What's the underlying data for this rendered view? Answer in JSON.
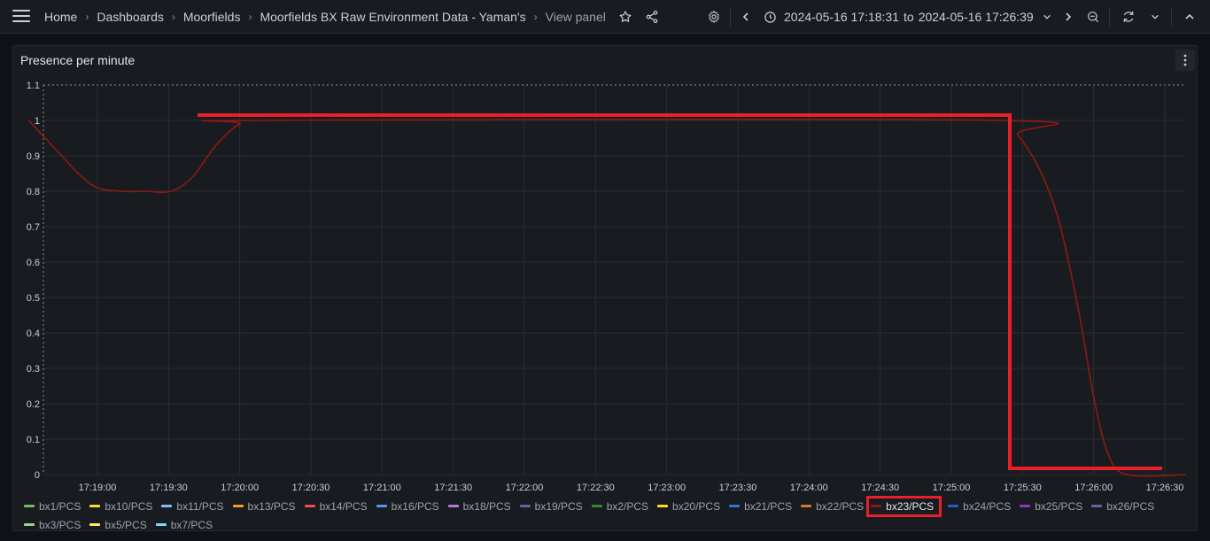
{
  "breadcrumb": [
    "Home",
    "Dashboards",
    "Moorfields",
    "Moorfields BX Raw Environment Data - Yaman's",
    "View panel"
  ],
  "time_range": {
    "from": "2024-05-16 17:18:31",
    "to_word": "to",
    "to": "2024-05-16 17:26:39"
  },
  "icons": {
    "menu": "hamburger-icon",
    "star": "star-icon",
    "share": "share-icon",
    "settings": "gear-icon",
    "prev": "chevron-left-icon",
    "clock": "clock-icon",
    "range_dropdown": "chevron-down-icon",
    "next": "chevron-right-icon",
    "zoom_out": "zoom-out-icon",
    "refresh": "refresh-icon",
    "refresh_dropdown": "chevron-down-icon",
    "collapse": "chevron-up-icon",
    "panel_menu": "kebab-menu-icon"
  },
  "panel": {
    "title": "Presence per minute"
  },
  "colors": {
    "bx23": "#8f1a12",
    "annotation": "#e8202a",
    "grid": "#2a2d33",
    "threshold": "#8e9099"
  },
  "chart_data": {
    "type": "line",
    "title": "Presence per minute",
    "ylim": [
      0,
      1.1
    ],
    "yticks": [
      "0",
      "0.1",
      "0.2",
      "0.3",
      "0.4",
      "0.5",
      "0.6",
      "0.7",
      "0.8",
      "0.9",
      "1",
      "1.1"
    ],
    "xticks": [
      "17:19:00",
      "17:19:30",
      "17:20:00",
      "17:20:30",
      "17:21:00",
      "17:21:30",
      "17:22:00",
      "17:22:30",
      "17:23:00",
      "17:23:30",
      "17:24:00",
      "17:24:30",
      "17:25:00",
      "17:25:30",
      "17:26:00",
      "17:26:30"
    ],
    "grid": true,
    "legend_position": "bottom",
    "series": [
      {
        "name": "bx23/PCS",
        "color": "#8f1a12",
        "points": [
          [
            "17:18:31",
            1.0
          ],
          [
            "17:18:45",
            0.9
          ],
          [
            "17:18:52",
            0.85
          ],
          [
            "17:19:00",
            0.81
          ],
          [
            "17:19:10",
            0.8
          ],
          [
            "17:19:20",
            0.8
          ],
          [
            "17:19:31",
            0.8
          ],
          [
            "17:19:40",
            0.84
          ],
          [
            "17:19:50",
            0.93
          ],
          [
            "17:20:00",
            0.99
          ],
          [
            "17:20:10",
            1.0
          ],
          [
            "17:25:20",
            1.0
          ],
          [
            "17:25:28",
            0.96
          ],
          [
            "17:25:38",
            0.85
          ],
          [
            "17:25:46",
            0.7
          ],
          [
            "17:25:54",
            0.45
          ],
          [
            "17:26:00",
            0.22
          ],
          [
            "17:26:06",
            0.06
          ],
          [
            "17:26:14",
            0.0
          ],
          [
            "17:26:39",
            0.0
          ]
        ]
      }
    ],
    "legend": [
      {
        "name": "bx1/PCS",
        "color": "#73bf69"
      },
      {
        "name": "bx10/PCS",
        "color": "#fade2a"
      },
      {
        "name": "bx11/PCS",
        "color": "#8ab8ff"
      },
      {
        "name": "bx13/PCS",
        "color": "#ff9830"
      },
      {
        "name": "bx14/PCS",
        "color": "#f2495c"
      },
      {
        "name": "bx16/PCS",
        "color": "#5794f2"
      },
      {
        "name": "bx18/PCS",
        "color": "#b877d9"
      },
      {
        "name": "bx19/PCS",
        "color": "#705da0"
      },
      {
        "name": "bx2/PCS",
        "color": "#37872d"
      },
      {
        "name": "bx20/PCS",
        "color": "#fade2a"
      },
      {
        "name": "bx21/PCS",
        "color": "#3274d9"
      },
      {
        "name": "bx22/PCS",
        "color": "#e0752d"
      },
      {
        "name": "bx23/PCS",
        "color": "#8f1a12"
      },
      {
        "name": "bx24/PCS",
        "color": "#1f60c4"
      },
      {
        "name": "bx25/PCS",
        "color": "#8f3bb8"
      },
      {
        "name": "bx26/PCS",
        "color": "#705da0"
      },
      {
        "name": "bx3/PCS",
        "color": "#96d98d"
      },
      {
        "name": "bx5/PCS",
        "color": "#ffee52"
      },
      {
        "name": "bx7/PCS",
        "color": "#73dcff"
      }
    ],
    "highlighted_legend": "bx23/PCS"
  }
}
